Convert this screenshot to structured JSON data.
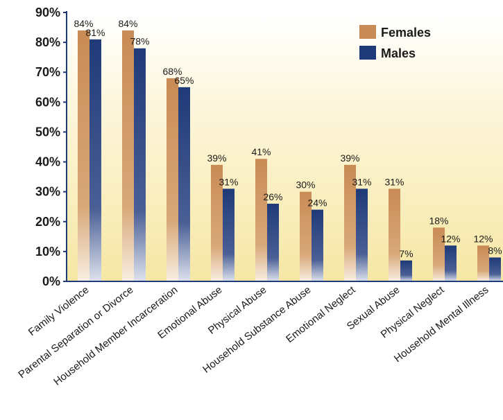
{
  "chart_data": {
    "type": "bar",
    "title": "",
    "xlabel": "",
    "ylabel": "",
    "ylim": [
      0,
      90
    ],
    "yticks": [
      "0%",
      "10%",
      "20%",
      "30%",
      "40%",
      "50%",
      "60%",
      "70%",
      "80%",
      "90%"
    ],
    "grid": false,
    "legend_position": "top-right",
    "categories": [
      "Family Violence",
      "Parental Separation or Divorce",
      "Household Member Incarceration",
      "Emotional Abuse",
      "Physical Abuse",
      "Household Substance Abuse",
      "Emotional Neglect",
      "Sexual Abuse",
      "Physical Neglect",
      "Household Mental Illness"
    ],
    "series": [
      {
        "name": "Females",
        "color": "#c98b55",
        "values": [
          84,
          84,
          68,
          39,
          41,
          30,
          39,
          31,
          18,
          12
        ],
        "labels": [
          "84%",
          "84%",
          "68%",
          "39%",
          "41%",
          "30%",
          "39%",
          "31%",
          "18%",
          "12%"
        ]
      },
      {
        "name": "Males",
        "color": "#1f3a78",
        "values": [
          81,
          78,
          65,
          31,
          26,
          24,
          31,
          7,
          12,
          8
        ],
        "labels": [
          "81%",
          "78%",
          "65%",
          "31%",
          "26%",
          "24%",
          "31%",
          "7%",
          "12%",
          "8%"
        ]
      }
    ],
    "background_color": "#f8edb8",
    "axis_color": "#1f3a78"
  }
}
